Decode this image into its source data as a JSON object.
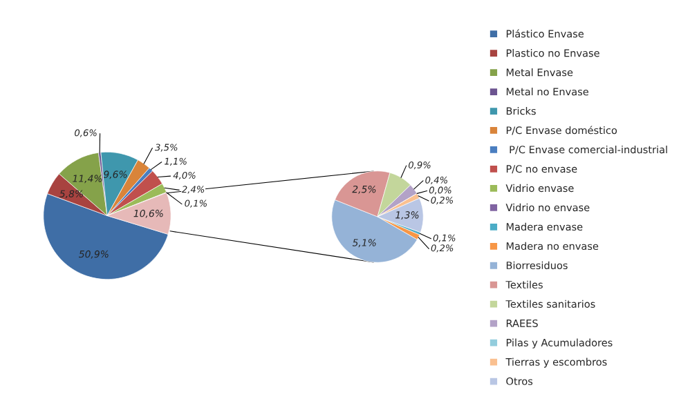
{
  "chart_data": [
    {
      "type": "pie",
      "categories": [
        "Plástico Envase",
        "Plastico no Envase",
        "Metal Envase",
        "Metal no Envase",
        "Bricks",
        "P/C Envase doméstico",
        " P/C Envase comercial-industrial",
        "P/C no envase",
        "Vidrio envase",
        "Vidrio no envase",
        null
      ],
      "values": [
        50.9,
        5.8,
        11.4,
        0.6,
        9.6,
        3.5,
        1.1,
        4.0,
        2.4,
        0.1,
        10.6
      ],
      "value_labels": [
        "50,9%",
        "5,8%",
        "11,4%",
        "0,6%",
        "9,6%",
        "3,5%",
        "1,1%",
        "4,0%",
        "2,4%",
        "0,1%",
        "10,6%"
      ],
      "colors": [
        "#3f6ea6",
        "#a84340",
        "#85a24a",
        "#6c5490",
        "#3f97ad",
        "#d9843a",
        "#4a7ec0",
        "#c0504d",
        "#9bbb59",
        "#8064a2",
        "#e6b9b8"
      ],
      "legend": "right"
    },
    {
      "type": "pie",
      "categories": [
        "Madera envase",
        "Madera no envase",
        "Biorresiduos",
        "Textiles",
        "Textiles sanitarios",
        "RAEES",
        "Pilas y Acumuladores",
        "Tierras y escombros",
        "Otros"
      ],
      "values": [
        0.1,
        0.2,
        5.1,
        2.5,
        0.9,
        0.4,
        0.0,
        0.2,
        1.3
      ],
      "value_labels": [
        "0,1%",
        "0,2%",
        "5,1%",
        "2,5%",
        "0,9%",
        "0,4%",
        "0,0%",
        "0,2%",
        "1,3%"
      ],
      "colors": [
        "#4bacc6",
        "#f79646",
        "#95b3d7",
        "#d99694",
        "#c3d69b",
        "#b3a2c7",
        "#93cddd",
        "#fac090",
        "#b9c6e4"
      ],
      "legend": "right"
    }
  ]
}
